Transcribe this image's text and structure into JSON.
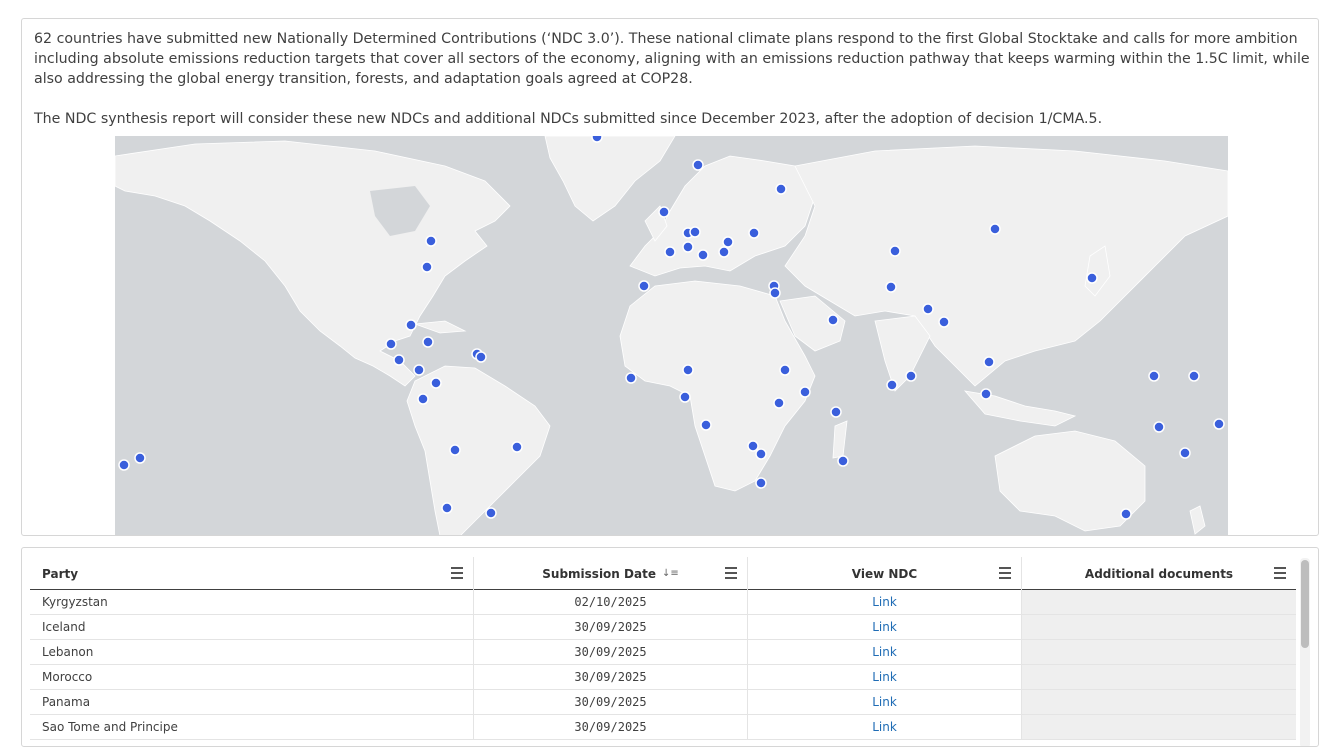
{
  "intro": {
    "paragraph1": "62 countries have submitted new Nationally Determined Contributions (‘NDC 3.0’). These national climate plans respond to the first Global Stocktake and calls for more ambition including absolute emissions reduction targets that cover all sectors of the economy, aligning with an emissions reduction pathway that keeps warming within the 1.5C limit, while also addressing the global energy transition, forests, and adaptation goals agreed at COP28.",
    "paragraph2": "The NDC synthesis report will consider these new NDCs and additional NDCs submitted since December 2023, after the adoption of decision 1/CMA.5."
  },
  "map": {
    "land_color": "#f0f0f0",
    "water_color": "#d3d6d9",
    "marker_color": "#3a5fdc",
    "marker_count": 62
  },
  "table": {
    "columns": [
      "Party",
      "Submission Date",
      "View NDC",
      "Additional documents"
    ],
    "sort_icon": "sort-descending-icon",
    "rows": [
      {
        "party": "Kyrgyzstan",
        "date": "02/10/2025",
        "view": "Link",
        "additional": ""
      },
      {
        "party": "Iceland",
        "date": "30/09/2025",
        "view": "Link",
        "additional": ""
      },
      {
        "party": "Lebanon",
        "date": "30/09/2025",
        "view": "Link",
        "additional": ""
      },
      {
        "party": "Morocco",
        "date": "30/09/2025",
        "view": "Link",
        "additional": ""
      },
      {
        "party": "Panama",
        "date": "30/09/2025",
        "view": "Link",
        "additional": ""
      },
      {
        "party": "Sao Tome and Principe",
        "date": "30/09/2025",
        "view": "Link",
        "additional": ""
      }
    ]
  }
}
